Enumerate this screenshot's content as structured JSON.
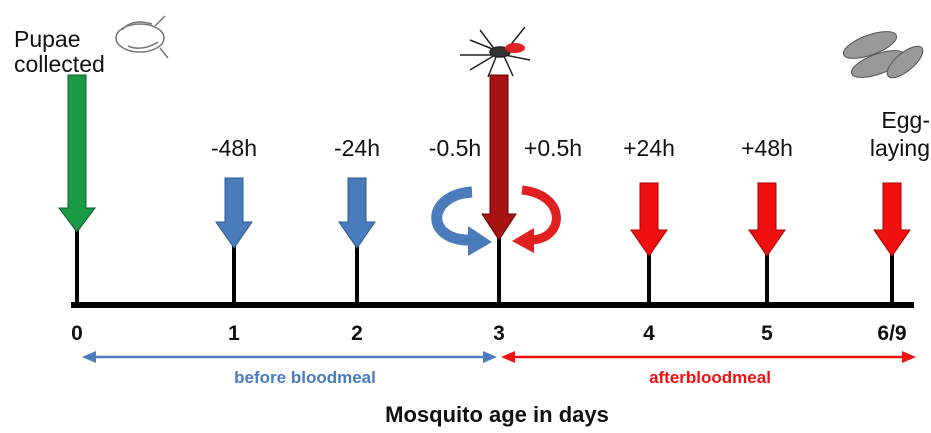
{
  "pupae_label": [
    "Pupae",
    "collected"
  ],
  "egg_label": [
    "Egg-",
    "laying"
  ],
  "time_labels": [
    "-48h",
    "-24h",
    "-0.5h",
    "+0.5h",
    "+24h",
    "+48h"
  ],
  "ticks": [
    "0",
    "1",
    "2",
    "3",
    "4",
    "5",
    "6/9"
  ],
  "before_label": "before bloodmeal",
  "after_label": "afterbloodmeal",
  "axis_title": "Mosquito age in days"
}
